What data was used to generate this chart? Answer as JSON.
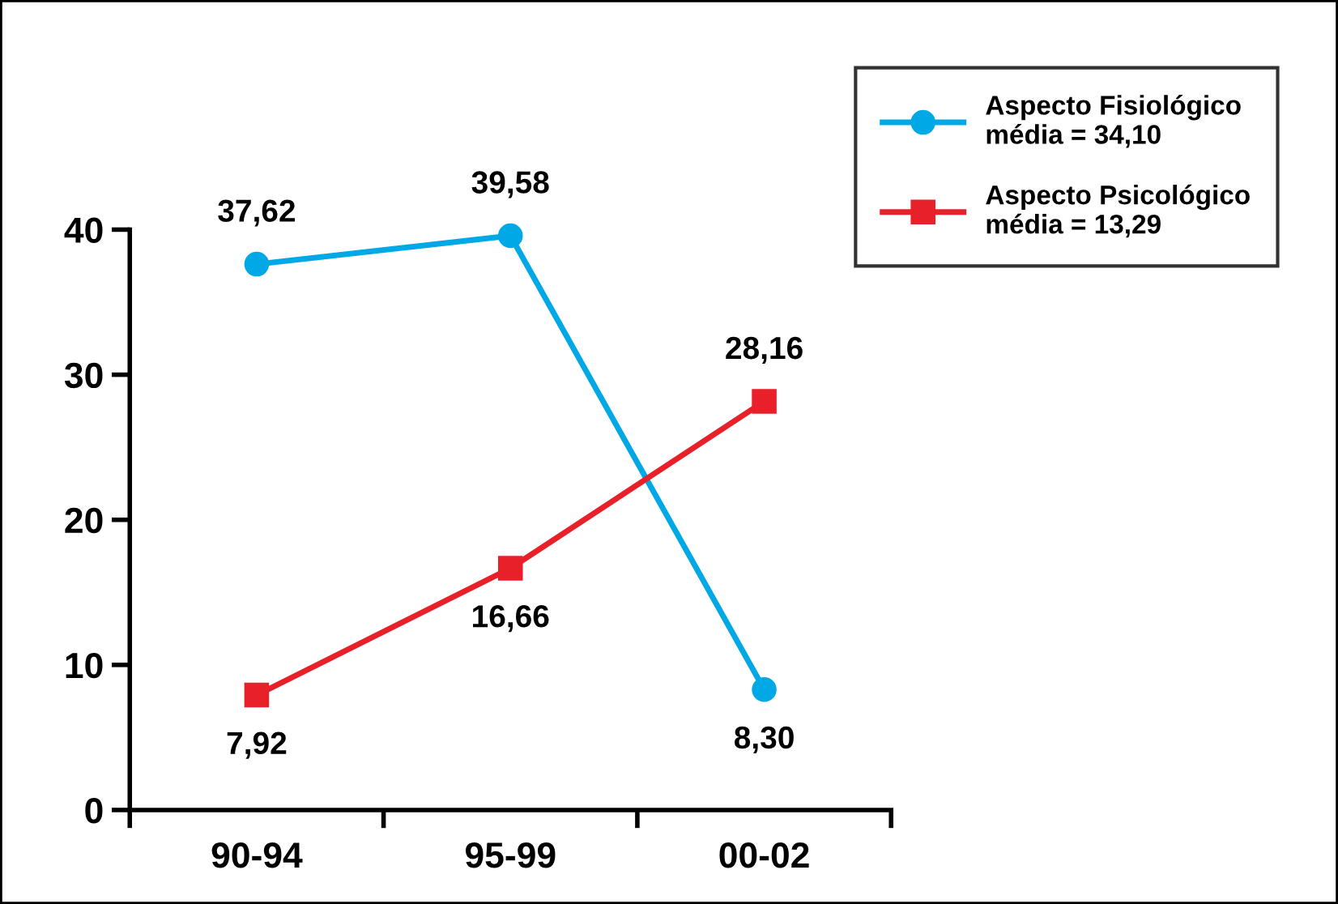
{
  "chart_data": {
    "type": "line",
    "categories": [
      "90-94",
      "95-99",
      "00-02"
    ],
    "series": [
      {
        "name": "Aspecto Fisiológico\nmédia = 34,10",
        "color": "#00a9e6",
        "marker": "circle",
        "values": [
          37.62,
          39.58,
          8.3
        ],
        "value_labels": [
          "37,62",
          "39,58",
          "8,30"
        ]
      },
      {
        "name": "Aspecto Psicológico\nmédia = 13,29",
        "color": "#e8202a",
        "marker": "square",
        "values": [
          7.92,
          16.66,
          28.16
        ],
        "value_labels": [
          "7,92",
          "16,66",
          "28,16"
        ]
      }
    ],
    "ylim": [
      0,
      40
    ],
    "yticks": [
      0,
      10,
      20,
      30,
      40
    ],
    "grid": false,
    "legend": "top right",
    "line_style": "solid"
  }
}
